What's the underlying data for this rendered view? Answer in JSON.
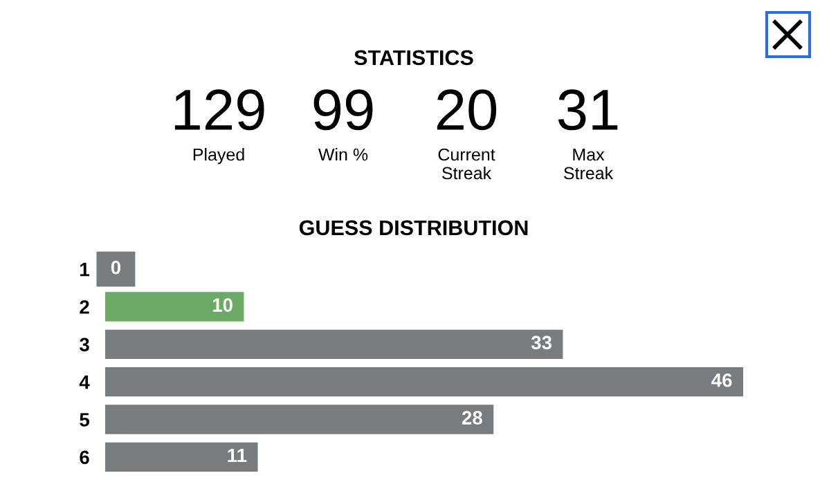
{
  "chart_data": [
    {
      "type": "other",
      "title": "STATISTICS",
      "categories": [
        "Played",
        "Win %",
        "Current\nStreak",
        "Max\nStreak"
      ],
      "values": [
        129,
        99,
        20,
        31
      ],
      "data_labels": true
    },
    {
      "type": "bar",
      "orientation": "horizontal",
      "title": "GUESS DISTRIBUTION",
      "categories": [
        "1",
        "2",
        "3",
        "4",
        "5",
        "6"
      ],
      "values": [
        0,
        10,
        33,
        46,
        28,
        11
      ],
      "colors": [
        "#787c7e",
        "#6aaa64",
        "#787c7e",
        "#787c7e",
        "#787c7e",
        "#787c7e"
      ],
      "xlim": [
        0,
        46
      ],
      "tick_labels": "y",
      "data_labels": true,
      "grid": false,
      "legend": false
    }
  ]
}
